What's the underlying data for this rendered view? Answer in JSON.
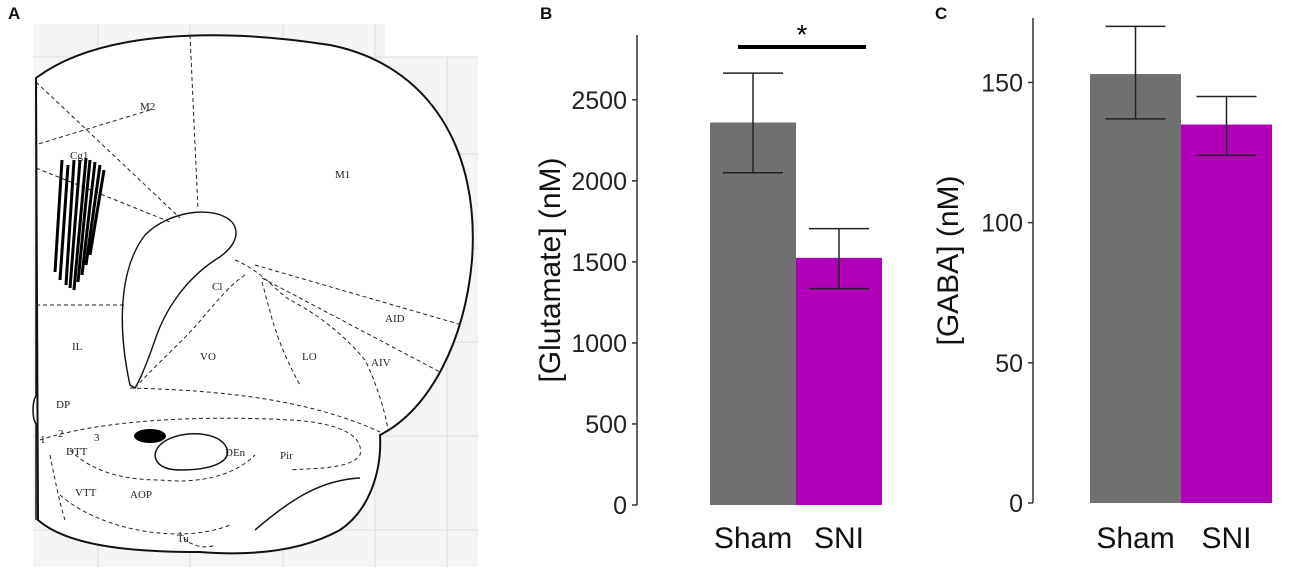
{
  "panels": {
    "a": "A",
    "b": "B",
    "c": "C"
  },
  "atlas": {
    "regions": [
      "M2",
      "Cg1",
      "M1",
      "Cl",
      "AID",
      "IL",
      "VO",
      "LO",
      "AIV",
      "DP",
      "1",
      "2",
      "3",
      "DTT",
      "DEn",
      "Pir",
      "VTT",
      "AOP",
      "Tu"
    ]
  },
  "colors": {
    "sham": "#707070",
    "sni": "#b000b8",
    "axis": "#333333"
  },
  "chart_data": [
    {
      "type": "bar",
      "panel": "B",
      "categories": [
        "Sham",
        "SNI"
      ],
      "values": [
        2360,
        1525
      ],
      "errors": [
        [
          2050,
          2665
        ],
        [
          1335,
          1705
        ]
      ],
      "ylabel": "[Glutamate] (nM)",
      "ylim": [
        0,
        2900
      ],
      "yticks": [
        0,
        500,
        1000,
        1500,
        2000,
        2500
      ],
      "significance": "*"
    },
    {
      "type": "bar",
      "panel": "C",
      "categories": [
        "Sham",
        "SNI"
      ],
      "values": [
        153,
        135
      ],
      "errors": [
        [
          137,
          170
        ],
        [
          124,
          145
        ]
      ],
      "ylabel": "[GABA] (nM)",
      "ylim": [
        0,
        173
      ],
      "yticks": [
        0,
        50,
        100,
        150
      ]
    }
  ]
}
